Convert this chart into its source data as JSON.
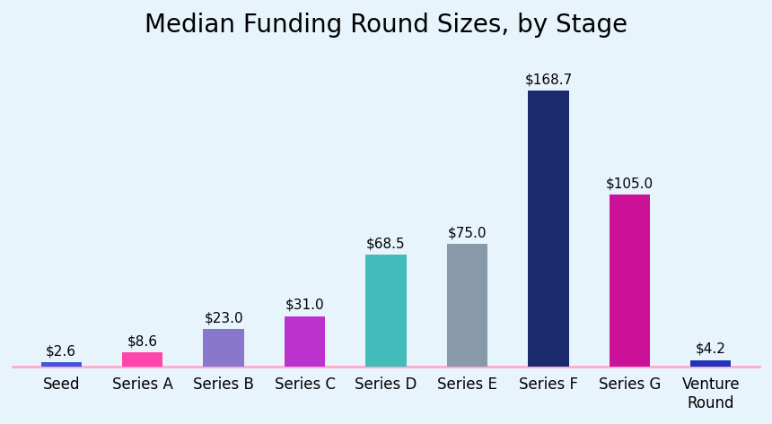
{
  "title": "Median Funding Round Sizes, by Stage",
  "categories": [
    "Seed",
    "Series A",
    "Series B",
    "Series C",
    "Series D",
    "Series E",
    "Series F",
    "Series G",
    "Venture\nRound"
  ],
  "values": [
    2.6,
    8.6,
    23.0,
    31.0,
    68.5,
    75.0,
    168.7,
    105.0,
    4.2
  ],
  "bar_colors": [
    "#4455dd",
    "#ff44aa",
    "#8877cc",
    "#bb33cc",
    "#44bbbb",
    "#8899aa",
    "#1a2a6c",
    "#cc1199",
    "#2233bb"
  ],
  "labels": [
    "$2.6",
    "$8.6",
    "$23.0",
    "$31.0",
    "$68.5",
    "$75.0",
    "$168.7",
    "$105.0",
    "$4.2"
  ],
  "background_color": "#e8f4fc",
  "title_fontsize": 20,
  "label_fontsize": 11,
  "tick_fontsize": 12,
  "ylim": [
    0,
    195
  ],
  "baseline_color": "#ffaacc",
  "bar_width": 0.5
}
